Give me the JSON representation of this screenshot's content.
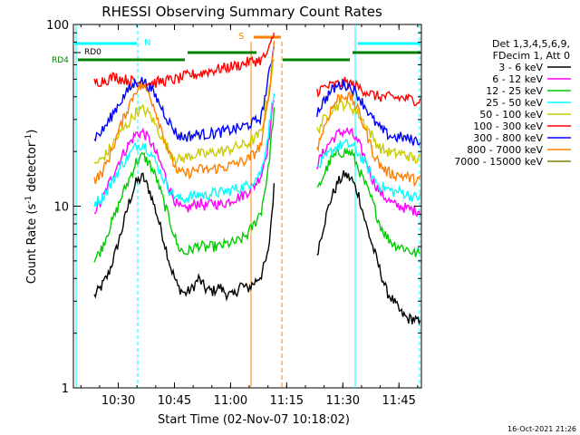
{
  "chart_data": {
    "type": "line",
    "title": "RHESSI Observing Summary Count Rates",
    "xlabel": "Start Time (02-Nov-07 10:18:02)",
    "ylabel_main": "Count Rate (s",
    "ylabel_sup": "-1",
    "ylabel_tail": " detector",
    "ylabel_end": ")",
    "x_range_minutes": [
      0,
      93
    ],
    "x_ticks": [
      {
        "label": "10:30",
        "value": 12
      },
      {
        "label": "10:45",
        "value": 27
      },
      {
        "label": "11:00",
        "value": 42
      },
      {
        "label": "11:15",
        "value": 57
      },
      {
        "label": "11:30",
        "value": 72
      },
      {
        "label": "11:45",
        "value": 87
      }
    ],
    "y_scale": "log",
    "y_range": [
      1,
      100
    ],
    "y_ticks": [
      {
        "label": "1",
        "value": 1
      },
      {
        "label": "10",
        "value": 10
      },
      {
        "label": "100",
        "value": 100
      }
    ],
    "legend_header": [
      "Det 1,3,4,5,6,9,",
      "FDecim 1, Att 0"
    ],
    "legend_position": "right",
    "series": [
      {
        "name": "3 - 6 keV",
        "color": "#000000",
        "values": [
          null,
          null,
          null,
          3.2,
          3.6,
          4.2,
          5.5,
          7.5,
          10.5,
          13.5,
          14.5,
          12,
          9,
          6.5,
          4.6,
          3.6,
          3.3,
          3.5,
          4,
          3.5,
          3.4,
          3.6,
          3.3,
          3.2,
          3.7,
          3.5,
          3.8,
          4.2,
          5.5,
          15,
          null,
          null,
          null,
          null,
          null,
          5.5,
          8,
          11,
          13.5,
          15,
          14,
          11.5,
          8,
          6,
          4.5,
          3.4,
          3,
          2.6,
          2.4,
          2.4,
          2.2
        ]
      },
      {
        "name": "6 - 12 keV",
        "color": "#ff00ff",
        "values": [
          null,
          null,
          null,
          9.5,
          10.5,
          13,
          16,
          19,
          22,
          25,
          25.5,
          23,
          19,
          15.5,
          12,
          10,
          9.5,
          10,
          10.5,
          10,
          10.5,
          10.2,
          10.5,
          11,
          11.3,
          12,
          13,
          15,
          22,
          45,
          null,
          null,
          null,
          null,
          null,
          17,
          20,
          23,
          25,
          26,
          25,
          22,
          18,
          14,
          12,
          11,
          10.2,
          10,
          9.7,
          9.5,
          9.5
        ]
      },
      {
        "name": "12 - 25 keV",
        "color": "#00cc00",
        "values": [
          null,
          null,
          null,
          5,
          5.8,
          7.3,
          9,
          11.5,
          14,
          17.5,
          19,
          17,
          14,
          10.5,
          8,
          6,
          5.5,
          5.8,
          6.1,
          5.9,
          6,
          6,
          6.2,
          6.3,
          6.5,
          7,
          8,
          9.5,
          16,
          40,
          null,
          null,
          null,
          null,
          null,
          12,
          15,
          18,
          19.5,
          20,
          19.5,
          16,
          13,
          10.5,
          8,
          6.8,
          6.2,
          6,
          5.8,
          5.5,
          5.5
        ]
      },
      {
        "name": "25 - 50 keV",
        "color": "#00ffff",
        "values": [
          null,
          null,
          null,
          10.5,
          11,
          12.5,
          14.5,
          17,
          19,
          21.5,
          22,
          20,
          17,
          14,
          12,
          11,
          11,
          11.3,
          11.6,
          11.4,
          11.8,
          11.9,
          12,
          12.4,
          12.6,
          13,
          14,
          15.5,
          25,
          50,
          null,
          null,
          null,
          null,
          null,
          16,
          18,
          20,
          21.5,
          22,
          21.5,
          19.5,
          17,
          14.5,
          13,
          12.5,
          12,
          12,
          11.6,
          11.2,
          11.2
        ]
      },
      {
        "name": "50 - 100 keV",
        "color": "#cccc00",
        "values": [
          null,
          null,
          null,
          17,
          18,
          20,
          23,
          26,
          29,
          33,
          34,
          32,
          27,
          23,
          19.5,
          18,
          18.5,
          19,
          19.5,
          19.2,
          19.8,
          20,
          20.2,
          21,
          21.5,
          22,
          23.5,
          25.5,
          42,
          70,
          null,
          null,
          null,
          null,
          null,
          26,
          30,
          34,
          36,
          36.5,
          35,
          32,
          28,
          24,
          21,
          20,
          19.5,
          19.5,
          19,
          18.2,
          18
        ]
      },
      {
        "name": "100 - 300 keV",
        "color": "#ff0000",
        "values": [
          null,
          null,
          null,
          48,
          49,
          50,
          52,
          50,
          49.5,
          48,
          47.5,
          47.5,
          48,
          49,
          49.5,
          50,
          52,
          53,
          53.5,
          55,
          56,
          57,
          58,
          59,
          60,
          62,
          63,
          64,
          70,
          95,
          null,
          null,
          null,
          null,
          null,
          43,
          45,
          46,
          47,
          48,
          47,
          45,
          43,
          41,
          40,
          40,
          39.5,
          39.5,
          39,
          38.5,
          38
        ]
      },
      {
        "name": "300 - 800 keV",
        "color": "#0000ff",
        "values": [
          null,
          null,
          null,
          24,
          25.5,
          29,
          34,
          39,
          44,
          48,
          49,
          45,
          39,
          33,
          28,
          24.5,
          24,
          24.5,
          25,
          24.8,
          25.2,
          25.5,
          26,
          26.5,
          27,
          28,
          29,
          31,
          50,
          85,
          null,
          null,
          null,
          null,
          null,
          33,
          38,
          43,
          46,
          47,
          45,
          40,
          35,
          30,
          27,
          25,
          24,
          24,
          23.5,
          23,
          23
        ]
      },
      {
        "name": "800 - 7000 keV",
        "color": "#ff8000",
        "values": [
          null,
          null,
          null,
          14,
          15,
          18,
          23,
          29,
          36,
          44,
          46,
          41,
          32,
          24,
          18.5,
          15.5,
          15,
          15.5,
          16,
          15.8,
          16,
          16.3,
          16.5,
          17,
          17.5,
          18,
          19.5,
          22,
          38,
          95,
          null,
          null,
          null,
          null,
          null,
          21,
          27,
          34,
          39,
          41,
          39,
          33,
          26,
          20,
          17,
          15.5,
          15,
          14.8,
          14.5,
          14,
          14
        ]
      },
      {
        "name": "7000 - 15000 keV",
        "color": "#808000",
        "values": [
          null,
          null,
          null,
          null,
          null,
          null,
          null,
          null,
          null,
          null,
          null,
          null,
          null,
          null,
          null,
          null,
          null,
          null,
          null,
          null,
          null,
          null,
          null,
          null,
          null,
          null,
          null,
          null,
          null,
          null,
          null,
          null,
          null,
          null,
          null,
          null,
          null,
          null,
          null,
          null,
          null,
          null,
          null,
          null,
          null,
          null,
          null,
          null,
          null,
          null,
          null
        ]
      }
    ],
    "annotations": {
      "N_label": "N",
      "S_label": "S",
      "RD0_label": "RD0",
      "RD4_label": "RD4"
    }
  },
  "timestamp": "16-Oct-2021 21:26"
}
